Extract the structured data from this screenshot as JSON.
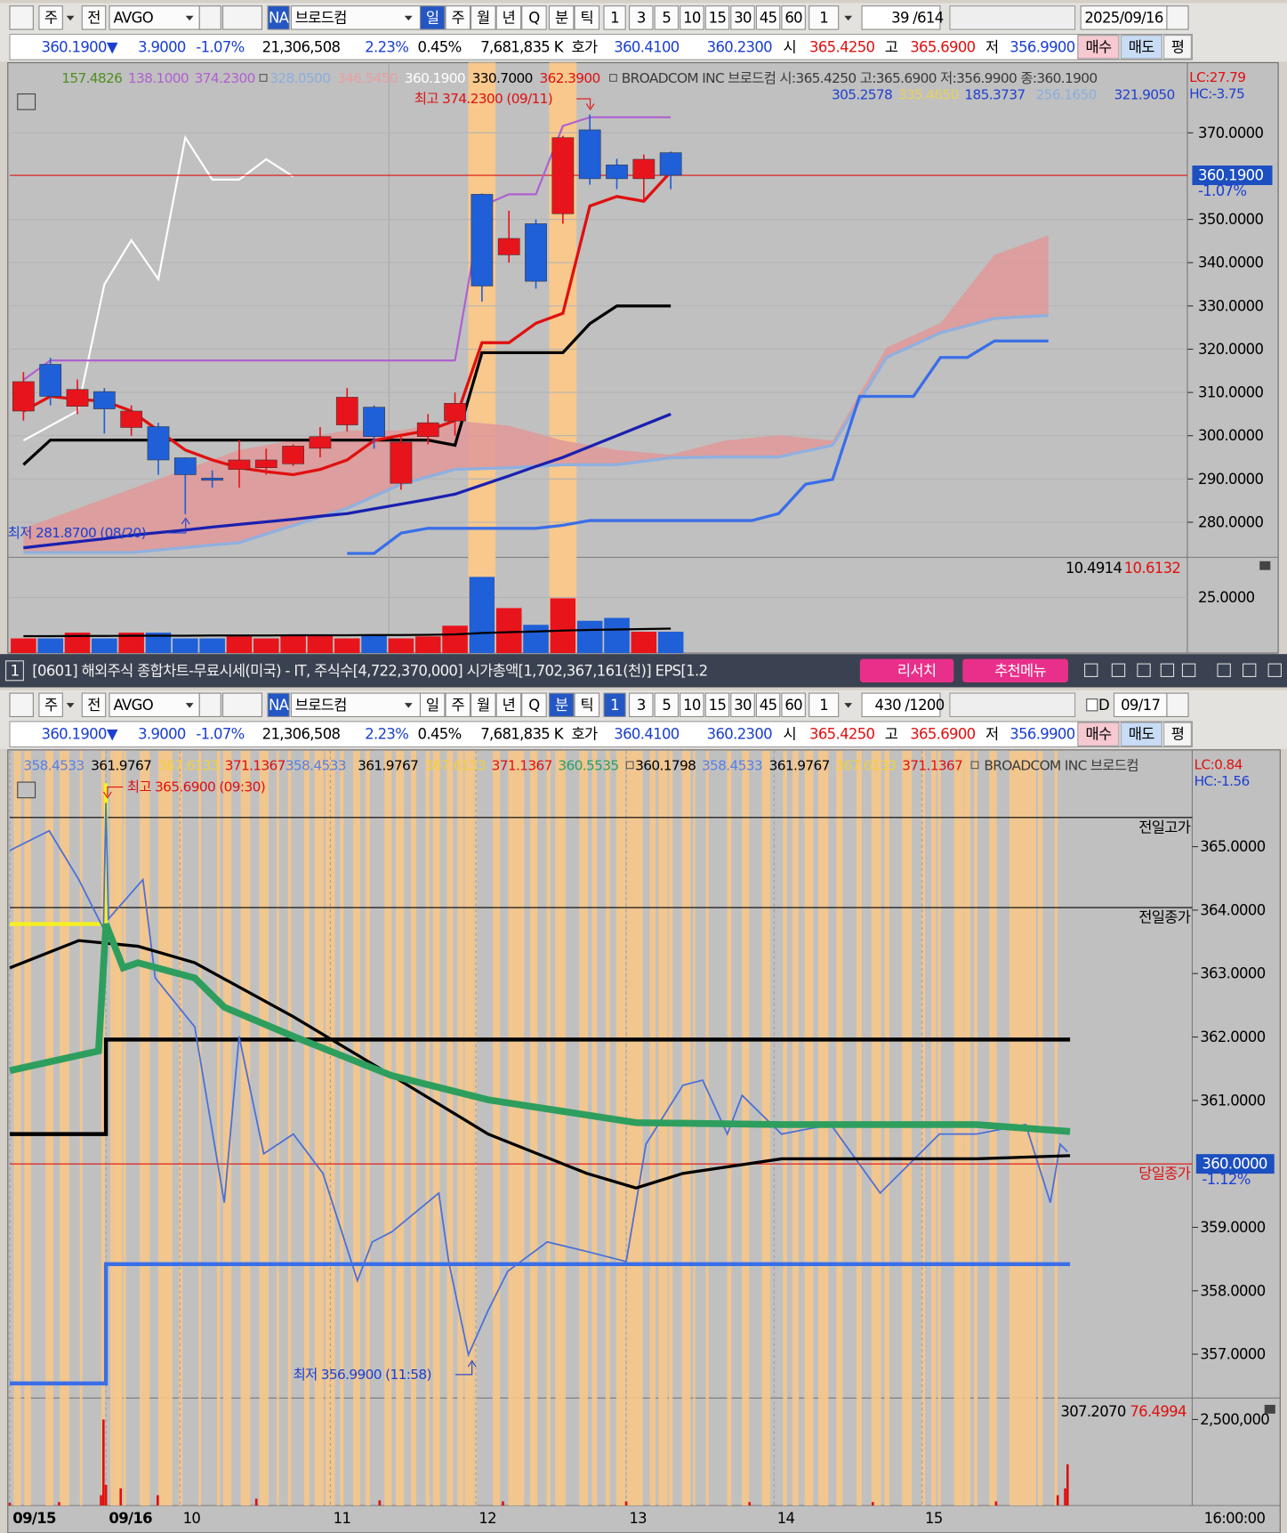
{
  "top_toolbar": {
    "items": [
      "주",
      "전",
      "AVGO",
      "NA",
      "브로드컴",
      "일",
      "주",
      "월",
      "년",
      "Q",
      "분",
      "틱",
      "1",
      "3",
      "5",
      "10",
      "15",
      "30",
      "45",
      "60",
      "1",
      "39",
      "/614",
      "2025/09/16"
    ],
    "selected": [
      5
    ]
  },
  "bottom_toolbar": {
    "items": [
      "주",
      "전",
      "AVGO",
      "NA",
      "브로드컴",
      "일",
      "주",
      "월",
      "년",
      "Q",
      "분",
      "틱",
      "1",
      "3",
      "5",
      "10",
      "15",
      "30",
      "45",
      "60",
      "1",
      "430",
      "/1200",
      "D",
      "09/17"
    ],
    "selected": [
      10,
      12
    ]
  },
  "quote": {
    "items": [
      "360.1900▼",
      "3.9000",
      "-1.07%",
      "21,306,508",
      "2.23%",
      "0.45%",
      "7,681,835 K",
      "호가",
      "360.4100",
      "360.2300",
      "시",
      "365.4250",
      "고",
      "365.6900",
      "저",
      "356.9900",
      "매수",
      "매도",
      "평"
    ]
  },
  "window": {
    "number": "1",
    "title": "[0601] 해외주식 종합차트-무료시세(미국) - IT, 주식수[4,722,370,000] 시가총액[1,702,367,161(천)] EPS[1.2",
    "research": "리서치",
    "menu": "추천메뉴"
  },
  "top_chart": {
    "legend": [
      {
        "text": "157.4826",
        "color": "#4f8f1f"
      },
      {
        "text": "138.1000",
        "color": "#b060d0"
      },
      {
        "text": "374.2300",
        "color": "#b060d0"
      },
      {
        "text": "328.0500",
        "color": "#8aaee0"
      },
      {
        "text": "346.5450",
        "color": "#e8a0a0"
      },
      {
        "text": "360.1900",
        "color": "#ffffff"
      },
      {
        "text": "330.7000",
        "color": "#000000"
      },
      {
        "text": "362.3900",
        "color": "#e01010"
      }
    ],
    "legend2": [
      {
        "text": "305.2578",
        "color": "#2040d0"
      },
      {
        "text": "335.4650",
        "color": "#e8d060"
      },
      {
        "text": "185.3737",
        "color": "#2040d0"
      },
      {
        "text": "256.1650",
        "color": "#8aaee0"
      },
      {
        "text": "321.9050",
        "color": "#2040d0"
      }
    ],
    "symbol": "BROADCOM INC  브로드컴 시:365.4250 고:365.6900 저:356.9900 종:360.1900",
    "lc": "LC:27.79",
    "hc": "HC:-3.75",
    "high_note": "최고 374.2300 (09/11)",
    "low_note": "최저 281.8700 (08/20)",
    "last": 360.19,
    "last_label": "360.1900",
    "change_label": "-1.07%",
    "ylim": [
      271.9,
      386.0
    ],
    "yticks": [
      {
        "value": 370,
        "label": "370.0000"
      },
      {
        "value": 350,
        "label": "350.0000"
      },
      {
        "value": 340,
        "label": "340.0000"
      },
      {
        "value": 330,
        "label": "330.0000"
      },
      {
        "value": 320,
        "label": "320.0000"
      },
      {
        "value": 310,
        "label": "310.0000"
      },
      {
        "value": 300,
        "label": "300.0000"
      },
      {
        "value": 290,
        "label": "290.0000"
      },
      {
        "value": 280,
        "label": "280.0000"
      }
    ],
    "highlight": [
      17,
      20
    ],
    "open": [
      305.7,
      316.5,
      306.8,
      310.2,
      301.9,
      302.1,
      294.9,
      290.2,
      292.2,
      292.6,
      293.5,
      297.1,
      302.5,
      306.6,
      289.0,
      299.8,
      303.4,
      355.8,
      341.8,
      349.0,
      351.3,
      370.7,
      362.6,
      359.4,
      365.425
    ],
    "high": [
      314.7,
      318.0,
      313.0,
      311.0,
      307.0,
      303.0,
      295.0,
      292.0,
      299.0,
      297.0,
      298.0,
      302.0,
      311.0,
      307.0,
      300.0,
      305.0,
      310.0,
      356.0,
      352.0,
      350.0,
      369.3,
      374.23,
      364.0,
      365.0,
      365.69
    ],
    "low": [
      303.5,
      307.0,
      305.0,
      300.5,
      300.0,
      291.0,
      281.87,
      288.0,
      288.0,
      291.0,
      293.0,
      295.0,
      301.0,
      297.0,
      287.5,
      298.0,
      300.0,
      331.0,
      340.0,
      334.0,
      349.0,
      358.0,
      357.0,
      354.0,
      356.99
    ],
    "close": [
      312.5,
      309.1,
      310.7,
      306.2,
      305.7,
      294.4,
      291.0,
      289.7,
      294.4,
      294.4,
      297.6,
      299.8,
      308.9,
      299.8,
      298.5,
      303.0,
      307.5,
      334.6,
      345.6,
      335.7,
      368.9,
      359.4,
      359.4,
      363.9,
      360.19
    ],
    "cloud": {
      "color": "#e09898",
      "edge": "#8fb0e0",
      "x": [
        0,
        4,
        8,
        12,
        14,
        16,
        18,
        20,
        22,
        24,
        26,
        28,
        30,
        32,
        34,
        36,
        38
      ],
      "upper": [
        278.6,
        287.7,
        296.7,
        301.2,
        301.2,
        303.5,
        302.3,
        298.9,
        296.7,
        295.6,
        298.9,
        300.1,
        298.9,
        320.4,
        326.0,
        341.8,
        346.3
      ],
      "lower": [
        273.0,
        273.0,
        275.3,
        283.2,
        288.8,
        292.2,
        292.6,
        293.3,
        293.3,
        294.9,
        295.1,
        295.1,
        297.8,
        318.1,
        323.8,
        327.1,
        327.8
      ]
    },
    "lag_line": {
      "color": "#3a6ee8",
      "x": [
        12,
        13,
        14,
        15,
        19,
        20,
        21,
        27,
        28,
        29,
        30,
        31,
        33,
        34,
        35,
        36,
        38
      ],
      "values": [
        272.8,
        272.8,
        277.5,
        278.6,
        278.6,
        279.3,
        280.4,
        280.4,
        282.0,
        288.8,
        289.9,
        309.1,
        309.1,
        318.1,
        318.1,
        321.9,
        321.9
      ]
    },
    "white_line": {
      "color": "#ffffff",
      "x": [
        0,
        2,
        3,
        4,
        5,
        6,
        7,
        8,
        9,
        10
      ],
      "values": [
        298.9,
        305.7,
        335.0,
        345.2,
        336.2,
        368.9,
        359.2,
        359.2,
        363.9,
        359.9
      ]
    },
    "lines": [
      {
        "color": "#b060d0",
        "width": 2,
        "values": [
          312.9,
          317.4,
          317.4,
          317.4,
          317.4,
          317.4,
          317.4,
          317.4,
          317.4,
          317.4,
          317.4,
          317.4,
          317.4,
          317.4,
          317.4,
          317.4,
          317.4,
          353.1,
          355.8,
          355.8,
          371.6,
          373.6,
          373.6,
          373.6,
          373.6
        ]
      },
      {
        "color": "#1a20b0",
        "width": 3,
        "values": [
          274.1,
          274.8,
          275.5,
          276.2,
          277.0,
          277.6,
          278.2,
          278.9,
          279.5,
          280.1,
          280.7,
          281.4,
          282.0,
          283.1,
          284.2,
          285.3,
          286.5,
          288.6,
          290.7,
          292.9,
          295.0,
          297.5,
          300.0,
          302.5,
          305.0
        ]
      },
      {
        "color": "#000000",
        "width": 3,
        "values": [
          293.3,
          299.0,
          299.0,
          299.0,
          299.0,
          299.0,
          299.0,
          299.0,
          299.0,
          299.0,
          299.0,
          299.0,
          299.0,
          299.0,
          299.0,
          299.0,
          297.8,
          319.2,
          319.2,
          319.2,
          319.2,
          325.9,
          330.0,
          330.0,
          330.0
        ]
      },
      {
        "color": "#e01010",
        "width": 3,
        "values": [
          305.7,
          309.1,
          308.4,
          308.0,
          305.7,
          301.2,
          296.7,
          294.4,
          292.6,
          291.7,
          291.0,
          292.2,
          294.4,
          298.9,
          300.1,
          301.2,
          303.5,
          321.5,
          321.5,
          326.0,
          328.3,
          353.1,
          355.3,
          354.2,
          361.0
        ]
      }
    ],
    "volume": {
      "values": [
        6.6,
        6.6,
        9.2,
        6.6,
        9.2,
        9.2,
        6.6,
        6.6,
        7.5,
        6.6,
        7.9,
        8.3,
        6.6,
        7.9,
        6.6,
        7.5,
        12.3,
        34.2,
        20.2,
        12.7,
        24.6,
        14.5,
        15.8,
        9.6,
        9.6
      ],
      "ma": [
        7.6,
        7.6,
        7.7,
        7.7,
        7.8,
        7.8,
        7.8,
        7.9,
        7.9,
        7.9,
        8.0,
        8.0,
        8.0,
        8.1,
        8.1,
        8.2,
        8.4,
        9.0,
        9.4,
        9.7,
        10.1,
        10.4,
        10.6,
        10.8,
        11.0
      ],
      "ylim": [
        0,
        43
      ],
      "yticks": [
        {
          "value": 25,
          "label": "25.0000"
        }
      ],
      "labels": [
        {
          "text": "10.4914",
          "color": "#000000"
        },
        {
          "text": "10.6132",
          "color": "#e01010"
        }
      ]
    }
  },
  "bottom_chart": {
    "legend": [
      {
        "text": "358.4533",
        "color": "#5a80e0"
      },
      {
        "text": "361.9767",
        "color": "#000000"
      },
      {
        "text": "367.6133",
        "color": "#f0d040"
      },
      {
        "text": "371.1367",
        "color": "#e01010"
      },
      {
        "text": "358.4533",
        "color": "#5a80e0"
      },
      {
        "text": "361.9767",
        "color": "#000000"
      },
      {
        "text": "367.6133",
        "color": "#f0d040"
      },
      {
        "text": "371.1367",
        "color": "#e01010"
      },
      {
        "text": "360.5535",
        "color": "#2e9e5e"
      },
      {
        "text": "360.1798",
        "color": "#000000"
      },
      {
        "text": "358.4533",
        "color": "#5a80e0"
      },
      {
        "text": "361.9767",
        "color": "#000000"
      },
      {
        "text": "367.6133",
        "color": "#f0d040"
      },
      {
        "text": "371.1367",
        "color": "#e01010"
      }
    ],
    "symbol": "BROADCOM INC  브로드컴",
    "lc": "LC:0.84",
    "hc": "HC:-1.56",
    "high_note": "최고 365.6900 (09:30)",
    "low_note": "최저 356.9900 (11:58)",
    "ylim": [
      356.31,
      366.51
    ],
    "yticks": [
      {
        "value": 365,
        "label": "365.0000"
      },
      {
        "value": 364,
        "label": "364.0000"
      },
      {
        "value": 363,
        "label": "363.0000"
      },
      {
        "value": 362,
        "label": "362.0000"
      },
      {
        "value": 361,
        "label": "361.0000"
      },
      {
        "value": 359,
        "label": "359.0000"
      },
      {
        "value": 358,
        "label": "358.0000"
      },
      {
        "value": 357,
        "label": "357.0000"
      }
    ],
    "xlim": [
      0,
      430
    ],
    "xticks": [
      {
        "value": 0,
        "label": "09/15"
      },
      {
        "value": 39,
        "label": "09/16"
      },
      {
        "value": 69,
        "label": "10"
      },
      {
        "value": 130,
        "label": "11"
      },
      {
        "value": 189,
        "label": "12"
      },
      {
        "value": 250,
        "label": "13"
      },
      {
        "value": 310,
        "label": "14"
      },
      {
        "value": 370,
        "label": "15"
      }
    ],
    "end_label": "16:00:00",
    "refs": [
      {
        "label": "전일고가",
        "value": 365.46,
        "color": "#000000"
      },
      {
        "label": "전일종가",
        "value": 364.04,
        "color": "#000000"
      },
      {
        "label": "당일종가",
        "value": 360.0,
        "color": "#e01010"
      }
    ],
    "last_label": "360.0000",
    "change_label": "-1.12%",
    "price": {
      "color": "#4a6fd8",
      "x": [
        0,
        16,
        28,
        38,
        39,
        40,
        54,
        59,
        75,
        87,
        93,
        103,
        115,
        127,
        141,
        147,
        155,
        174,
        178,
        186,
        194,
        202,
        218,
        234,
        250,
        258,
        273,
        281,
        291,
        297,
        313,
        333,
        353,
        369,
        377,
        392,
        412,
        422,
        426,
        429
      ],
      "values": [
        364.94,
        365.25,
        364.48,
        363.71,
        365.69,
        363.86,
        364.48,
        362.93,
        362.16,
        359.39,
        362.01,
        360.16,
        360.47,
        359.85,
        358.16,
        358.77,
        358.93,
        359.54,
        358.46,
        356.99,
        357.69,
        358.31,
        358.77,
        358.62,
        358.46,
        360.31,
        361.24,
        361.32,
        360.47,
        361.08,
        360.47,
        360.62,
        359.54,
        360.16,
        360.47,
        360.47,
        360.62,
        359.39,
        360.31,
        360.19
      ]
    },
    "lines": [
      {
        "color": "#f5f020",
        "width": 4,
        "x": [
          0,
          39,
          39
        ],
        "values": [
          363.78,
          363.78,
          366.0
        ]
      },
      {
        "color": "#3a6ee8",
        "width": 4,
        "x": [
          0,
          39,
          39,
          430
        ],
        "values": [
          356.54,
          356.54,
          358.42,
          358.42
        ]
      },
      {
        "color": "#000000",
        "width": 4,
        "x": [
          0,
          39,
          39,
          430
        ],
        "values": [
          360.47,
          360.47,
          361.96,
          361.96
        ]
      },
      {
        "color": "#000000",
        "width": 3,
        "x": [
          0,
          28,
          52,
          75,
          115,
          155,
          194,
          234,
          254,
          273,
          313,
          353,
          392,
          430
        ],
        "values": [
          363.09,
          363.52,
          363.43,
          363.17,
          362.32,
          361.39,
          360.47,
          359.85,
          359.62,
          359.85,
          360.08,
          360.08,
          360.08,
          360.13
        ]
      },
      {
        "color": "#2e9e5e",
        "width": 7,
        "x": [
          0,
          36,
          39,
          46,
          52,
          75,
          87,
          115,
          155,
          194,
          254,
          313,
          392,
          430
        ],
        "values": [
          361.47,
          361.78,
          363.78,
          363.09,
          363.17,
          362.93,
          362.47,
          362.01,
          361.39,
          361.01,
          360.65,
          360.62,
          360.62,
          360.51
        ]
      }
    ],
    "volume": {
      "color": "#e01010",
      "x": [
        0,
        20,
        37,
        38,
        39,
        45,
        60,
        100,
        150,
        200,
        250,
        300,
        350,
        400,
        425,
        428,
        429
      ],
      "values": [
        80000,
        100000,
        300000,
        2500000,
        600000,
        500000,
        300000,
        200000,
        150000,
        120000,
        120000,
        100000,
        100000,
        120000,
        300000,
        500000,
        1200000
      ],
      "ylim": [
        0,
        3125000
      ],
      "yticks": [
        {
          "value": 2500000,
          "label": "2,500,000"
        }
      ],
      "labels": [
        {
          "text": "307.2070",
          "color": "#000000"
        },
        {
          "text": "76.4994",
          "color": "#e01010"
        }
      ]
    }
  }
}
